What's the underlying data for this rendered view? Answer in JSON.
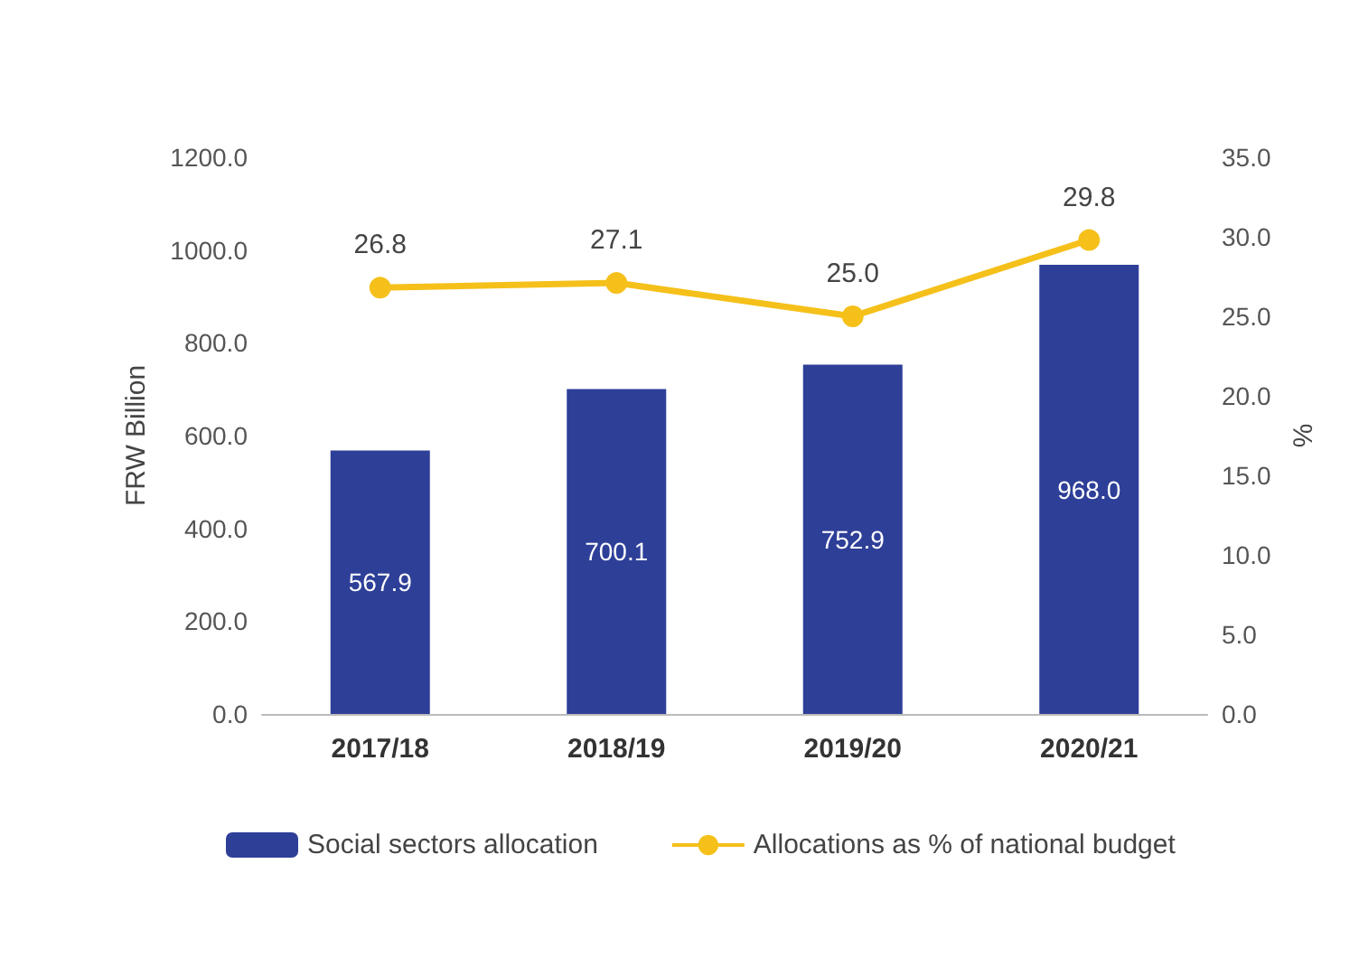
{
  "chart_data": {
    "type": "bar",
    "ylabel": "FRW Billion",
    "y2label": "%",
    "categories": [
      "2017/18",
      "2018/19",
      "2019/20",
      "2020/21"
    ],
    "series": [
      {
        "name": "Social sectors allocation",
        "color": "#2e3f98",
        "values": [
          567.9,
          700.1,
          752.9,
          968.0
        ],
        "value_labels": [
          "567.9",
          "700.1",
          "752.9",
          "968.0"
        ]
      },
      {
        "name": "Allocations as % of national budget",
        "type": "line",
        "axis": "y2",
        "color": "#f5c01a",
        "marker": "circle",
        "values": [
          26.8,
          27.1,
          25.0,
          29.8
        ],
        "value_labels": [
          "26.8",
          "27.1",
          "25.0",
          "29.8"
        ]
      }
    ],
    "ylim": [
      0,
      1200
    ],
    "yticks": [
      {
        "value": 0,
        "label": "0.0"
      },
      {
        "value": 200,
        "label": "200.0"
      },
      {
        "value": 400,
        "label": "400.0"
      },
      {
        "value": 600,
        "label": "600.0"
      },
      {
        "value": 800,
        "label": "800.0"
      },
      {
        "value": 1000,
        "label": "1000.0"
      },
      {
        "value": 1200,
        "label": "1200.0"
      }
    ],
    "y2lim": [
      0,
      35
    ],
    "y2ticks": [
      {
        "value": 0,
        "label": "0.0"
      },
      {
        "value": 5,
        "label": "5.0"
      },
      {
        "value": 10,
        "label": "10.0"
      },
      {
        "value": 15,
        "label": "15.0"
      },
      {
        "value": 20,
        "label": "20.0"
      },
      {
        "value": 25,
        "label": "25.0"
      },
      {
        "value": 30,
        "label": "30.0"
      },
      {
        "value": 35,
        "label": "35.0"
      }
    ],
    "legend": "bottom left"
  }
}
